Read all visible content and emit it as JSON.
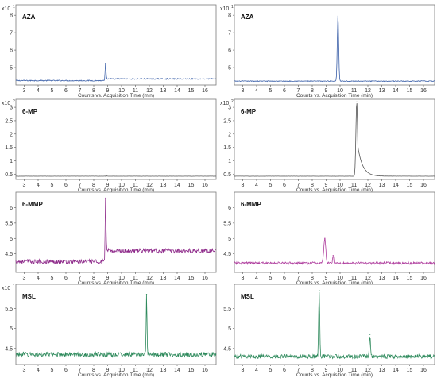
{
  "figure": {
    "xlabel": "Counts vs. Acquisition Time (min)"
  },
  "chart_data": [
    {
      "type": "line",
      "label": "AZA",
      "scale_label": "x10",
      "scale_exp": "1",
      "xlim": [
        2.4,
        16.8
      ],
      "xticks": [
        3,
        4,
        5,
        6,
        7,
        8,
        9,
        10,
        11,
        12,
        13,
        14,
        15,
        16
      ],
      "ylim": [
        4.0,
        8.6
      ],
      "yticks": [
        5,
        6,
        7,
        8
      ],
      "ytick_labels": [
        "5",
        "6",
        "7",
        "8"
      ],
      "color": "#3a5fa8",
      "baseline": 4.25,
      "noise": 0.03,
      "shift": [
        [
          8.9,
          4.35
        ]
      ],
      "peaks": [
        {
          "x": 8.85,
          "y": 5.25,
          "w": 0.03
        }
      ],
      "xlabel": "Counts vs. Acquisition Time (min)"
    },
    {
      "type": "line",
      "label": "AZA",
      "scale_label": "x10",
      "scale_exp": "1",
      "xlim": [
        2.4,
        16.8
      ],
      "xticks": [
        3,
        4,
        5,
        6,
        7,
        8,
        9,
        10,
        11,
        12,
        13,
        14,
        15,
        16
      ],
      "ylim": [
        4.0,
        8.6
      ],
      "yticks": [
        5,
        6,
        7,
        8
      ],
      "ytick_labels": [
        "5",
        "6",
        "7",
        "8"
      ],
      "color": "#3a5fa8",
      "baseline": 4.22,
      "noise": 0.02,
      "shift": [],
      "peaks": [
        {
          "x": 9.85,
          "y": 7.95,
          "w": 0.05
        }
      ],
      "xlabel": "Counts vs. Acquisition Time (min)"
    },
    {
      "type": "line",
      "label": "6-MP",
      "scale_label": "x10",
      "scale_exp": "2",
      "xlim": [
        2.4,
        16.8
      ],
      "xticks": [
        3,
        4,
        5,
        6,
        7,
        8,
        9,
        10,
        11,
        12,
        13,
        14,
        15,
        16
      ],
      "ylim": [
        0.3,
        3.3
      ],
      "yticks": [
        0.5,
        1,
        1.5,
        2,
        2.5,
        3
      ],
      "ytick_labels": [
        "0.5",
        "1",
        "1.5",
        "2",
        "2.5",
        "3"
      ],
      "color": "#555555",
      "baseline": 0.42,
      "noise": 0.003,
      "shift": [],
      "peaks": [
        {
          "x": 8.9,
          "y": 0.46,
          "w": 0.02
        }
      ],
      "xlabel": "Counts vs. Acquisition Time (min)"
    },
    {
      "type": "line",
      "label": "6-MP",
      "scale_label": "x10",
      "scale_exp": "2",
      "xlim": [
        2.4,
        16.8
      ],
      "xticks": [
        3,
        4,
        5,
        6,
        7,
        8,
        9,
        10,
        11,
        12,
        13,
        14,
        15,
        16
      ],
      "ylim": [
        0.3,
        3.3
      ],
      "yticks": [
        0.5,
        1,
        1.5,
        2,
        2.5,
        3
      ],
      "ytick_labels": [
        "0.5",
        "1",
        "1.5",
        "2",
        "2.5",
        "3"
      ],
      "color": "#555555",
      "baseline": 0.42,
      "noise": 0.003,
      "shift": [],
      "peaks": [
        {
          "x": 11.2,
          "y": 3.2,
          "w": 0.06,
          "tail": 0.35
        }
      ],
      "xlabel": "Counts vs. Acquisition Time (min)"
    },
    {
      "type": "line",
      "label": "6-MMP",
      "scale_label": "",
      "scale_exp": "",
      "xlim": [
        2.4,
        16.8
      ],
      "xticks": [
        3,
        4,
        5,
        6,
        7,
        8,
        9,
        10,
        11,
        12,
        13,
        14,
        15,
        16
      ],
      "ylim": [
        3.9,
        6.5
      ],
      "yticks": [
        4.5,
        5,
        5.5,
        6
      ],
      "ytick_labels": [
        "4.5",
        "5",
        "5.5",
        "6"
      ],
      "color": "#8e2a8a",
      "baseline": 4.25,
      "noise": 0.07,
      "shift": [
        [
          8.9,
          4.6
        ]
      ],
      "peaks": [
        {
          "x": 8.85,
          "y": 6.3,
          "w": 0.03
        }
      ],
      "xlabel": "Counts vs. Acquisition Time (min)"
    },
    {
      "type": "line",
      "label": "6-MMP",
      "scale_label": "",
      "scale_exp": "",
      "xlim": [
        2.4,
        16.8
      ],
      "xticks": [
        3,
        4,
        5,
        6,
        7,
        8,
        9,
        10,
        11,
        12,
        13,
        14,
        15,
        16
      ],
      "ylim": [
        3.9,
        6.5
      ],
      "yticks": [
        4.5,
        5,
        5.5,
        6
      ],
      "ytick_labels": [
        "4.5",
        "5",
        "5.5",
        "6"
      ],
      "color": "#b0409f",
      "baseline": 4.2,
      "noise": 0.04,
      "shift": [],
      "peaks": [
        {
          "x": 8.9,
          "y": 5.0,
          "w": 0.07
        },
        {
          "x": 9.5,
          "y": 4.45,
          "w": 0.04
        }
      ],
      "xlabel": "Counts vs. Acquisition Time (min)"
    },
    {
      "type": "line",
      "label": "MSL",
      "scale_label": "x10",
      "scale_exp": "1",
      "xlim": [
        2.4,
        16.8
      ],
      "xticks": [
        3,
        4,
        5,
        6,
        7,
        8,
        9,
        10,
        11,
        12,
        13,
        14,
        15,
        16
      ],
      "ylim": [
        4.1,
        6.1
      ],
      "yticks": [
        4.5,
        5,
        5.5
      ],
      "ytick_labels": [
        "4.5",
        "5",
        "5.5"
      ],
      "color": "#2e8a5c",
      "baseline": 4.35,
      "noise": 0.06,
      "shift": [],
      "peaks": [
        {
          "x": 11.8,
          "y": 5.85,
          "w": 0.03
        }
      ],
      "xlabel": "Counts vs. Acquisition Time (min)"
    },
    {
      "type": "line",
      "label": "MSL",
      "scale_label": "",
      "scale_exp": "",
      "xlim": [
        2.4,
        16.8
      ],
      "xticks": [
        3,
        4,
        5,
        6,
        7,
        8,
        9,
        10,
        11,
        12,
        13,
        14,
        15,
        16
      ],
      "ylim": [
        4.1,
        6.1
      ],
      "yticks": [
        4.5,
        5,
        5.5
      ],
      "ytick_labels": [
        "4.5",
        "5",
        "5.5"
      ],
      "color": "#2e8a5c",
      "baseline": 4.3,
      "noise": 0.05,
      "shift": [],
      "peaks": [
        {
          "x": 8.5,
          "y": 5.95,
          "w": 0.04
        },
        {
          "x": 12.15,
          "y": 4.85,
          "w": 0.04
        }
      ],
      "xlabel": "Counts vs. Acquisition Time (min)"
    }
  ]
}
